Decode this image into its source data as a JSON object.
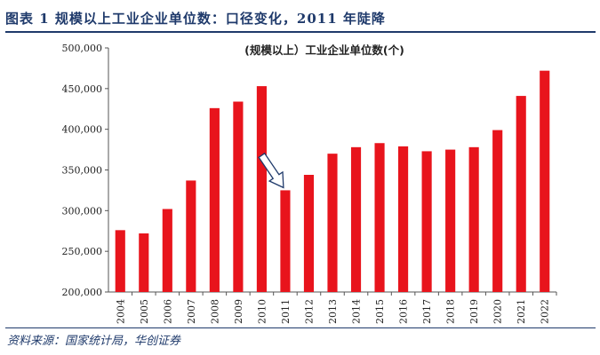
{
  "figure": {
    "title": "图表 1   规模以上工业企业单位数：口径变化，2011 年陡降",
    "source": "资料来源：国家统计局，华创证券"
  },
  "colors": {
    "bar": "#e8141c",
    "title": "#1f3a6b",
    "arrow": "#1f3a6b",
    "axis": "#555555"
  },
  "chart_data": {
    "type": "bar",
    "title": "(规模以上）工业企业单位数(个)",
    "xlabel": "",
    "ylabel": "",
    "categories": [
      "2004",
      "2005",
      "2006",
      "2007",
      "2008",
      "2009",
      "2010",
      "2011",
      "2012",
      "2013",
      "2014",
      "2015",
      "2016",
      "2017",
      "2018",
      "2019",
      "2020",
      "2021",
      "2022"
    ],
    "values": [
      276000,
      272000,
      302000,
      337000,
      426000,
      434000,
      453000,
      325000,
      344000,
      370000,
      378000,
      383000,
      379000,
      373000,
      375000,
      378000,
      399000,
      441000,
      472000
    ],
    "ylim": [
      200000,
      500000
    ],
    "yticks": [
      200000,
      250000,
      300000,
      350000,
      400000,
      450000,
      500000
    ],
    "ytick_labels": [
      "200,000",
      "250,000",
      "300,000",
      "350,000",
      "400,000",
      "450,000",
      "500,000"
    ],
    "grid": false,
    "legend": "none",
    "annotation": {
      "type": "arrow",
      "from": "2010",
      "to": "2011"
    }
  }
}
